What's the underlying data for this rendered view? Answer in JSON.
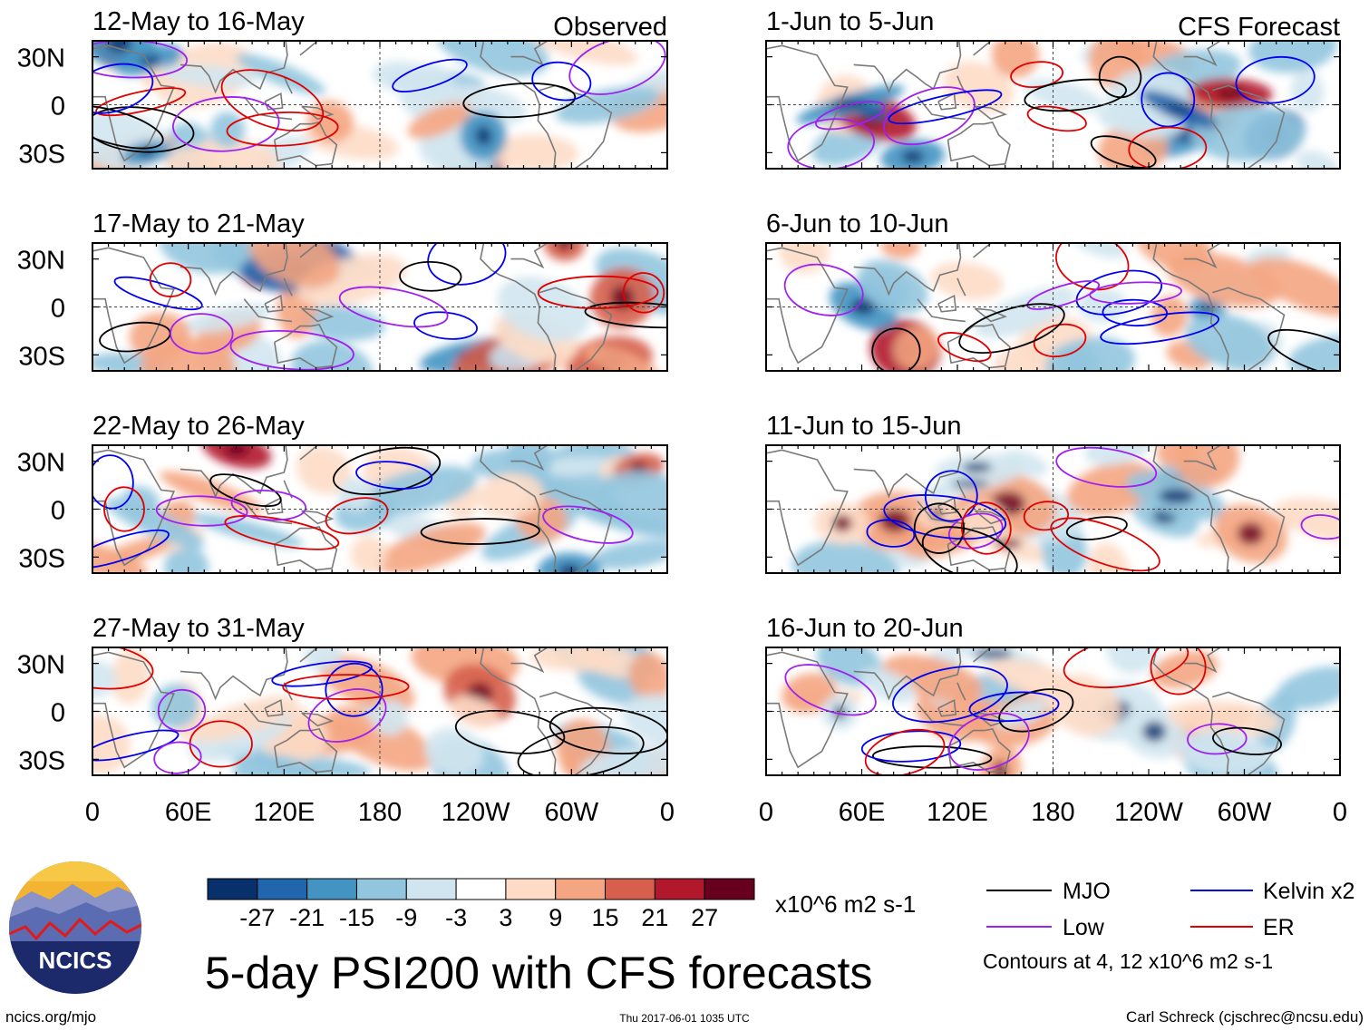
{
  "chart_data": {
    "type": "heatmap",
    "title": "5-day PSI200 with CFS forecasts",
    "units": "x10^6 m2 s-1",
    "column_titles": {
      "observed": "Observed",
      "forecast": "CFS Forecast"
    },
    "lat_range": [
      -40,
      40
    ],
    "lon_range": [
      0,
      360
    ],
    "lat_ticks": [
      "30N",
      "0",
      "30S"
    ],
    "lon_ticks": [
      "0",
      "60E",
      "120E",
      "180",
      "120W",
      "60W",
      "0"
    ],
    "panels": [
      {
        "period": "12-May to 16-May",
        "column": "observed"
      },
      {
        "period": "17-May to 21-May",
        "column": "observed"
      },
      {
        "period": "22-May to 26-May",
        "column": "observed"
      },
      {
        "period": "27-May to 31-May",
        "column": "observed"
      },
      {
        "period": "1-Jun to 5-Jun",
        "column": "forecast"
      },
      {
        "period": "6-Jun to 10-Jun",
        "column": "forecast"
      },
      {
        "period": "11-Jun to 15-Jun",
        "column": "forecast"
      },
      {
        "period": "16-Jun to 20-Jun",
        "column": "forecast"
      }
    ],
    "colorbar": {
      "colors": [
        "#08306b",
        "#2166ac",
        "#4393c3",
        "#92c5de",
        "#d1e5f0",
        "#ffffff",
        "#fddbc7",
        "#f4a582",
        "#d6604d",
        "#b2182b",
        "#67001f"
      ],
      "labels": [
        "-27",
        "-21",
        "-15",
        "-9",
        "-3",
        "3",
        "9",
        "15",
        "21",
        "27"
      ]
    },
    "legend": [
      {
        "label": "MJO",
        "color": "#000000"
      },
      {
        "label": "Kelvin x2",
        "color": "#0000ee"
      },
      {
        "label": "Low",
        "color": "#a020f0"
      },
      {
        "label": "ER",
        "color": "#e00000"
      }
    ],
    "contour_note": "Contours at 4, 12 x10^6 m2 s-1"
  },
  "logo": {
    "text": "NCICS"
  },
  "footer": {
    "url": "ncics.org/mjo",
    "timestamp": "Thu 2017-06-01 1035 UTC",
    "credit": "Carl Schreck (cjschrec@ncsu.edu)"
  }
}
